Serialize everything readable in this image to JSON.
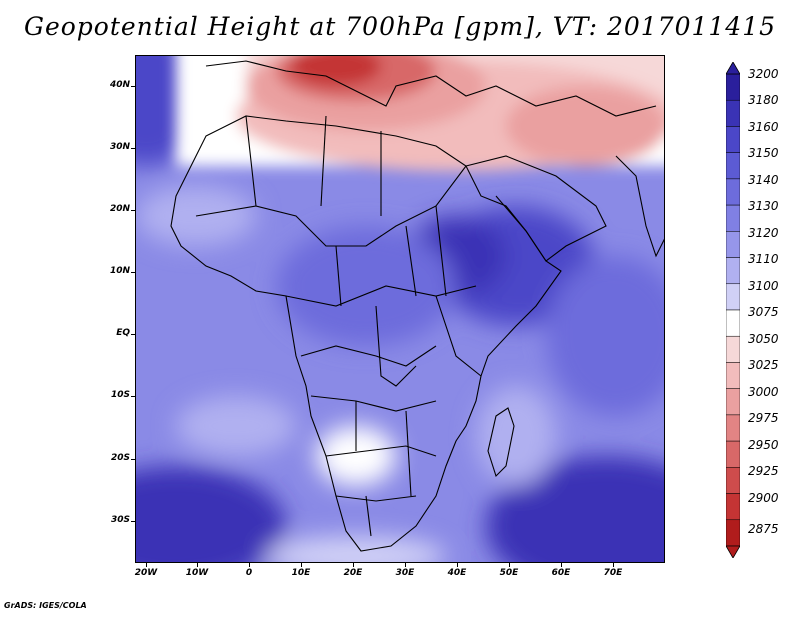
{
  "title": "Geopotential Height at 700hPa [gpm], VT: 2017011415",
  "credit": "GrADS: IGES/COLA",
  "map": {
    "region": "Africa",
    "lon_range": [
      -22,
      80
    ],
    "lat_range": [
      -36,
      45
    ],
    "lat_labels": [
      "40N",
      "30N",
      "20N",
      "10N",
      "EQ",
      "10S",
      "20S",
      "30S"
    ],
    "lon_labels": [
      "20W",
      "10W",
      "0",
      "10E",
      "20E",
      "30E",
      "40E",
      "50E",
      "60E",
      "70E"
    ]
  },
  "colorbar": {
    "labels": [
      "3200",
      "3180",
      "3160",
      "3150",
      "3140",
      "3130",
      "3120",
      "3110",
      "3100",
      "3075",
      "3050",
      "3025",
      "3000",
      "2975",
      "2950",
      "2925",
      "2900",
      "2875"
    ],
    "colors": [
      "#2a1f9c",
      "#3a33b5",
      "#4b47c8",
      "#5c5bd4",
      "#6d6cdc",
      "#8080e4",
      "#9696ea",
      "#b0b0f0",
      "#d0d0f6",
      "#ffffff",
      "#f6d8d8",
      "#f2bcbc",
      "#eaa0a0",
      "#e28484",
      "#d86868",
      "#ce4c4c",
      "#c43434",
      "#b01c1c"
    ]
  }
}
